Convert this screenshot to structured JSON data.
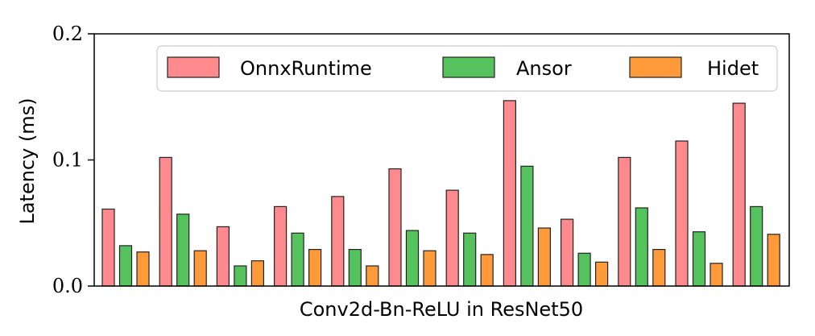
{
  "chart_data": {
    "type": "bar",
    "xlabel": "Conv2d-Bn-ReLU in ResNet50",
    "ylabel": "Latency (ms)",
    "ylim": [
      0,
      0.2
    ],
    "yticks": [
      "0.0",
      "0.1",
      "0.2"
    ],
    "ytick_values": [
      0,
      0.1,
      0.2
    ],
    "categories": [
      "",
      "",
      "",
      "",
      "",
      "",
      "",
      "",
      "",
      "",
      "",
      ""
    ],
    "grid": false,
    "legend_position": "top",
    "series": [
      {
        "name": "OnnxRuntime",
        "color": "#ff8a8e",
        "values": [
          0.061,
          0.102,
          0.047,
          0.063,
          0.071,
          0.093,
          0.076,
          0.147,
          0.053,
          0.102,
          0.115,
          0.145
        ]
      },
      {
        "name": "Ansor",
        "color": "#56c25e",
        "values": [
          0.032,
          0.057,
          0.016,
          0.042,
          0.029,
          0.044,
          0.042,
          0.095,
          0.026,
          0.062,
          0.043,
          0.063
        ]
      },
      {
        "name": "Hidet",
        "color": "#ff9a3a",
        "values": [
          0.027,
          0.028,
          0.02,
          0.029,
          0.016,
          0.028,
          0.025,
          0.046,
          0.019,
          0.029,
          0.018,
          0.041
        ]
      }
    ]
  }
}
